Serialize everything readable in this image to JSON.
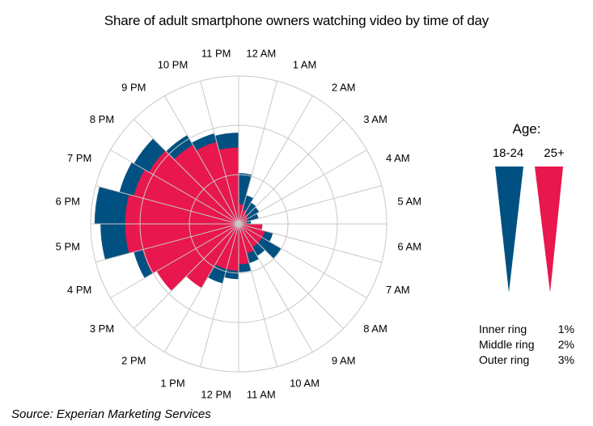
{
  "chart_data": {
    "type": "polar-bar",
    "title": "Share of adult smartphone owners watching video by time of day",
    "categories": [
      "12 AM",
      "1 AM",
      "2 AM",
      "3 AM",
      "4 AM",
      "5 AM",
      "6 AM",
      "7 AM",
      "8 AM",
      "9 AM",
      "10 AM",
      "11 AM",
      "12 PM",
      "1 PM",
      "2 PM",
      "3 PM",
      "4 PM",
      "5 PM",
      "6 PM",
      "7 PM",
      "8 PM",
      "9 PM",
      "10 PM",
      "11 PM"
    ],
    "series": [
      {
        "name": "18-24",
        "color": "#005182",
        "values": [
          1.03,
          0.6,
          0.5,
          0.48,
          0.42,
          0.25,
          0.48,
          0.72,
          1.0,
          0.75,
          0.82,
          0.98,
          1.12,
          1.25,
          1.42,
          1.65,
          2.2,
          2.8,
          2.92,
          2.5,
          2.45,
          2.08,
          1.9,
          1.85
        ]
      },
      {
        "name": "25+",
        "color": "#E8174D",
        "values": [
          0.4,
          0.3,
          0.25,
          0.22,
          0.18,
          0.16,
          0.48,
          0.55,
          0.55,
          0.55,
          0.62,
          0.82,
          0.95,
          0.95,
          1.5,
          1.92,
          2.02,
          2.3,
          2.3,
          2.2,
          2.1,
          1.85,
          1.72,
          1.55
        ]
      }
    ],
    "rings": [
      1,
      2,
      3
    ],
    "rmax": 3,
    "legend_title": "Age:",
    "ring_key": [
      {
        "label": "Inner ring",
        "value": "1%"
      },
      {
        "label": "Middle ring",
        "value": "2%"
      },
      {
        "label": "Outer ring",
        "value": "3%"
      }
    ],
    "source": "Source: Experian Marketing Services"
  }
}
